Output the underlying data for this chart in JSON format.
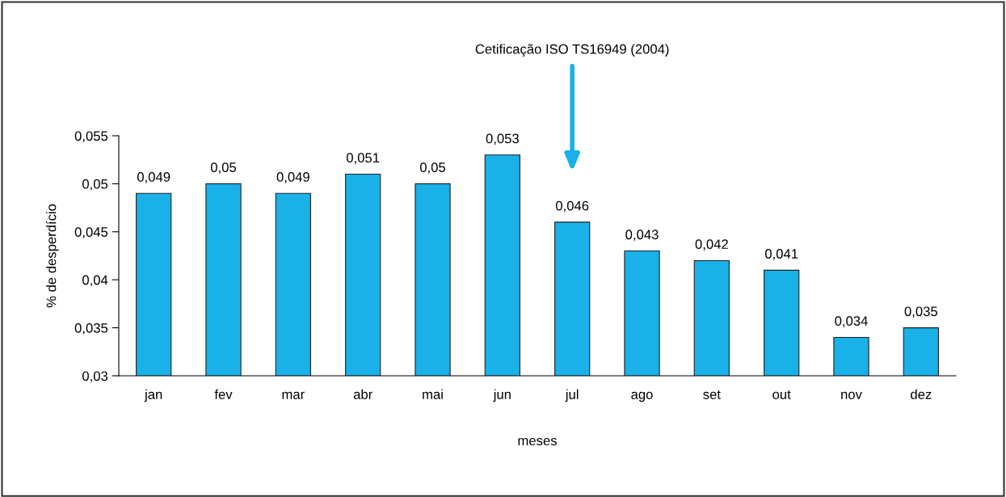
{
  "chart_data": {
    "type": "bar",
    "xlabel": "meses",
    "ylabel": "% de desperdício",
    "categories": [
      "jan",
      "fev",
      "mar",
      "abr",
      "mai",
      "jun",
      "jul",
      "ago",
      "set",
      "out",
      "nov",
      "dez"
    ],
    "values": [
      0.049,
      0.05,
      0.049,
      0.051,
      0.05,
      0.053,
      0.046,
      0.043,
      0.042,
      0.041,
      0.034,
      0.035
    ],
    "value_labels": [
      "0,049",
      "0,05",
      "0,049",
      "0,051",
      "0,05",
      "0,053",
      "0,046",
      "0,043",
      "0,042",
      "0,041",
      "0,034",
      "0,035"
    ],
    "color": "#1ab0e8",
    "ylim": [
      0.03,
      0.055
    ],
    "yticks": [
      {
        "value": 0.03,
        "label": "0,03"
      },
      {
        "value": 0.035,
        "label": "0,035"
      },
      {
        "value": 0.04,
        "label": "0,04"
      },
      {
        "value": 0.045,
        "label": "0,045"
      },
      {
        "value": 0.05,
        "label": "0,05"
      },
      {
        "value": 0.055,
        "label": "0,055"
      }
    ],
    "annotations": [
      "Cetificação ISO TS16949 (2004)"
    ],
    "grid": false,
    "legend": false
  }
}
